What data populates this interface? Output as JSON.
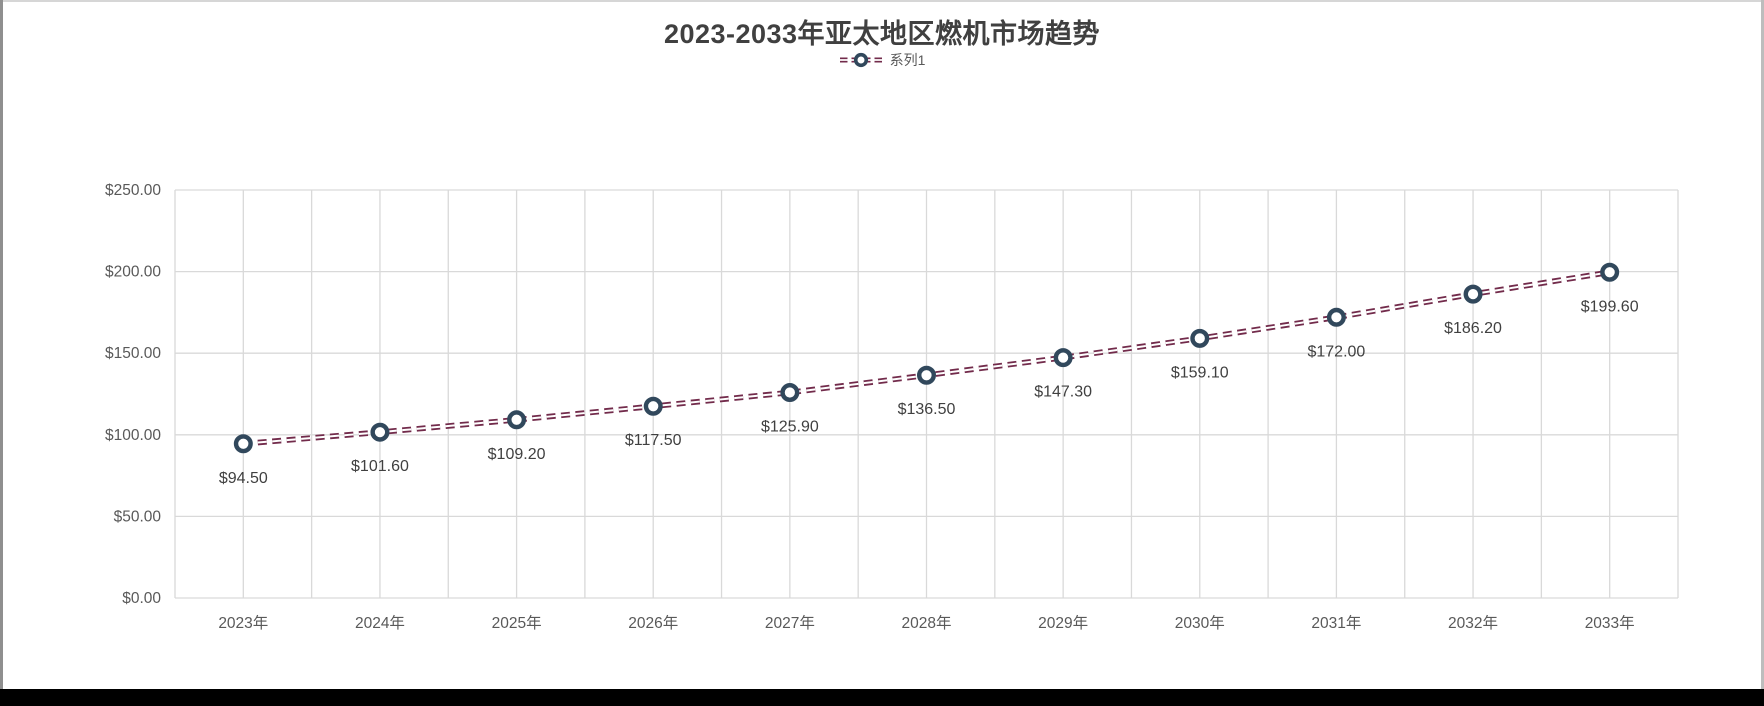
{
  "title": "2023-2033年亚太地区燃机市场趋势",
  "legend": {
    "series_label": "系列1"
  },
  "colors": {
    "line": "#722B4B",
    "marker_ring": "#31485C",
    "marker_fill": "#FFFFFF",
    "grid": "#D9D9D9",
    "title_text": "#404040",
    "axis_text": "#595959",
    "data_label_text": "#404040",
    "background": "#FFFFFF",
    "bottom_bar": "#000000"
  },
  "chart_data": {
    "type": "line",
    "title": "2023-2033年亚太地区燃机市场趋势",
    "categories": [
      "2023年",
      "2024年",
      "2025年",
      "2026年",
      "2027年",
      "2028年",
      "2029年",
      "2030年",
      "2031年",
      "2032年",
      "2033年"
    ],
    "series": [
      {
        "name": "系列1",
        "values": [
          94.5,
          101.6,
          109.2,
          117.5,
          125.9,
          136.5,
          147.3,
          159.1,
          172.0,
          186.2,
          199.6
        ],
        "data_labels": [
          "$94.50",
          "$101.60",
          "$109.20",
          "$117.50",
          "$125.90",
          "$136.50",
          "$147.30",
          "$159.10",
          "$172.00",
          "$186.20",
          "$199.60"
        ]
      }
    ],
    "xlabel": "",
    "ylabel": "",
    "ylim": [
      0,
      250
    ],
    "ytick_step": 50,
    "ytick_labels": [
      "$0.00",
      "$50.00",
      "$100.00",
      "$150.00",
      "$200.00",
      "$250.00"
    ],
    "grid": true,
    "vertical_gridlines_per_category": 2,
    "legend_position": "top",
    "line_style": "double-dash",
    "marker": "open-circle"
  }
}
